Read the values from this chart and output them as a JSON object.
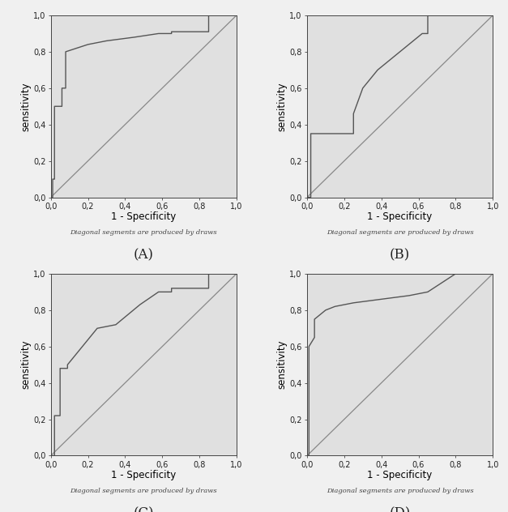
{
  "background_color": "#e0e0e0",
  "outer_background": "#f0f0f0",
  "line_color": "#555555",
  "diagonal_color": "#888888",
  "axis_bg": "#e0e0e0",
  "panels": [
    "A",
    "B",
    "C",
    "D"
  ],
  "xlabel": "1 - Specificity",
  "ylabel": "sensitivity",
  "subtitle": "Diagonal segments are produced by draws",
  "xlim": [
    0.0,
    1.0
  ],
  "ylim": [
    0.0,
    1.0
  ],
  "xticks": [
    0.0,
    0.2,
    0.4,
    0.6,
    0.8,
    1.0
  ],
  "yticks": [
    0.0,
    0.2,
    0.4,
    0.6,
    0.8,
    1.0
  ],
  "roc_curves": {
    "A": {
      "x": [
        0.0,
        0.01,
        0.01,
        0.02,
        0.02,
        0.06,
        0.06,
        0.08,
        0.08,
        0.14,
        0.2,
        0.3,
        0.45,
        0.58,
        0.65,
        0.65,
        0.85,
        0.85,
        1.0
      ],
      "y": [
        0.0,
        0.0,
        0.1,
        0.1,
        0.5,
        0.5,
        0.6,
        0.6,
        0.8,
        0.82,
        0.84,
        0.86,
        0.88,
        0.9,
        0.9,
        0.91,
        0.91,
        1.0,
        1.0
      ]
    },
    "B": {
      "x": [
        0.0,
        0.02,
        0.02,
        0.06,
        0.06,
        0.25,
        0.25,
        0.3,
        0.38,
        0.5,
        0.62,
        0.65,
        0.65,
        1.0
      ],
      "y": [
        0.0,
        0.0,
        0.35,
        0.35,
        0.35,
        0.35,
        0.46,
        0.6,
        0.7,
        0.8,
        0.9,
        0.9,
        1.0,
        1.0
      ]
    },
    "C": {
      "x": [
        0.0,
        0.02,
        0.02,
        0.05,
        0.05,
        0.09,
        0.09,
        0.25,
        0.35,
        0.48,
        0.58,
        0.65,
        0.65,
        0.85,
        0.85,
        1.0
      ],
      "y": [
        0.0,
        0.0,
        0.22,
        0.22,
        0.48,
        0.48,
        0.5,
        0.7,
        0.72,
        0.83,
        0.9,
        0.9,
        0.92,
        0.92,
        1.0,
        1.0
      ]
    },
    "D": {
      "x": [
        0.0,
        0.01,
        0.01,
        0.04,
        0.04,
        0.1,
        0.15,
        0.25,
        0.4,
        0.55,
        0.65,
        0.8,
        1.0
      ],
      "y": [
        0.0,
        0.0,
        0.6,
        0.65,
        0.75,
        0.8,
        0.82,
        0.84,
        0.86,
        0.88,
        0.9,
        1.0,
        1.0
      ]
    }
  }
}
